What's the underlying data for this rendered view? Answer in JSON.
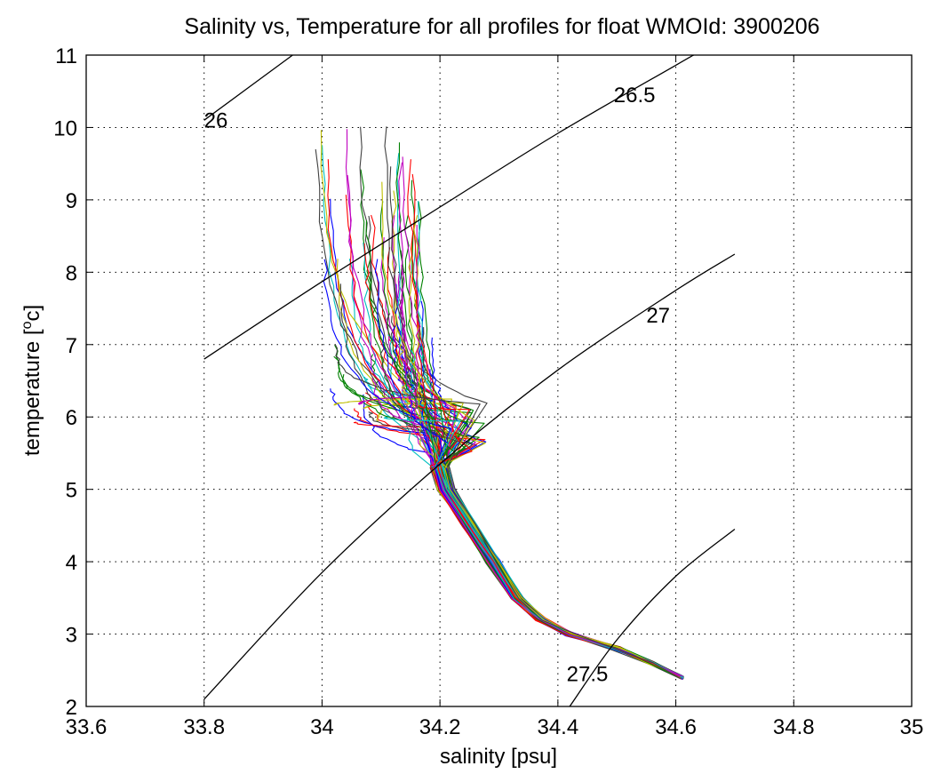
{
  "chart_data": {
    "type": "line",
    "title": "Salinity vs, Temperature for all profiles for float WMOId: 3900206",
    "xlabel": "salinity [psu]",
    "ylabel_prefix": "temperature [",
    "ylabel_sup": "o",
    "ylabel_suffix": "c]",
    "xlim": [
      33.6,
      35.0
    ],
    "ylim": [
      2,
      11
    ],
    "x_ticks": [
      33.6,
      33.8,
      34.0,
      34.2,
      34.4,
      34.6,
      34.8,
      35.0
    ],
    "x_tick_labels": [
      "33.6",
      "33.8",
      "34",
      "34.2",
      "34.4",
      "34.6",
      "34.8",
      "35"
    ],
    "y_ticks": [
      2,
      3,
      4,
      5,
      6,
      7,
      8,
      9,
      10,
      11
    ],
    "y_tick_labels": [
      "2",
      "3",
      "4",
      "5",
      "6",
      "7",
      "8",
      "9",
      "10",
      "11"
    ],
    "grid": true,
    "density_contours": [
      {
        "label": "26",
        "label_at": [
          33.82,
          10.1
        ],
        "points": [
          [
            33.8,
            10.1
          ],
          [
            33.95,
            11.0
          ]
        ]
      },
      {
        "label": "26.5",
        "label_at": [
          34.53,
          10.45
        ],
        "points": [
          [
            33.8,
            6.8
          ],
          [
            34.0,
            7.87
          ],
          [
            34.2,
            8.9
          ],
          [
            34.4,
            9.92
          ],
          [
            34.6,
            10.86
          ],
          [
            34.63,
            11.0
          ]
        ]
      },
      {
        "label": "27",
        "label_at": [
          34.57,
          7.4
        ],
        "points": [
          [
            33.8,
            2.1
          ],
          [
            34.0,
            3.85
          ],
          [
            34.2,
            5.35
          ],
          [
            34.4,
            6.65
          ],
          [
            34.6,
            7.75
          ],
          [
            34.7,
            8.25
          ]
        ]
      },
      {
        "label": "27.5",
        "label_at": [
          34.45,
          2.45
        ],
        "points": [
          [
            34.42,
            2.0
          ],
          [
            34.5,
            2.92
          ],
          [
            34.6,
            3.8
          ],
          [
            34.7,
            4.45
          ]
        ]
      }
    ],
    "profile_colors": [
      "#0000ff",
      "#008000",
      "#ff0000",
      "#00bfbf",
      "#bf00bf",
      "#bfbf00",
      "#404040"
    ],
    "profile_count": 84
  }
}
